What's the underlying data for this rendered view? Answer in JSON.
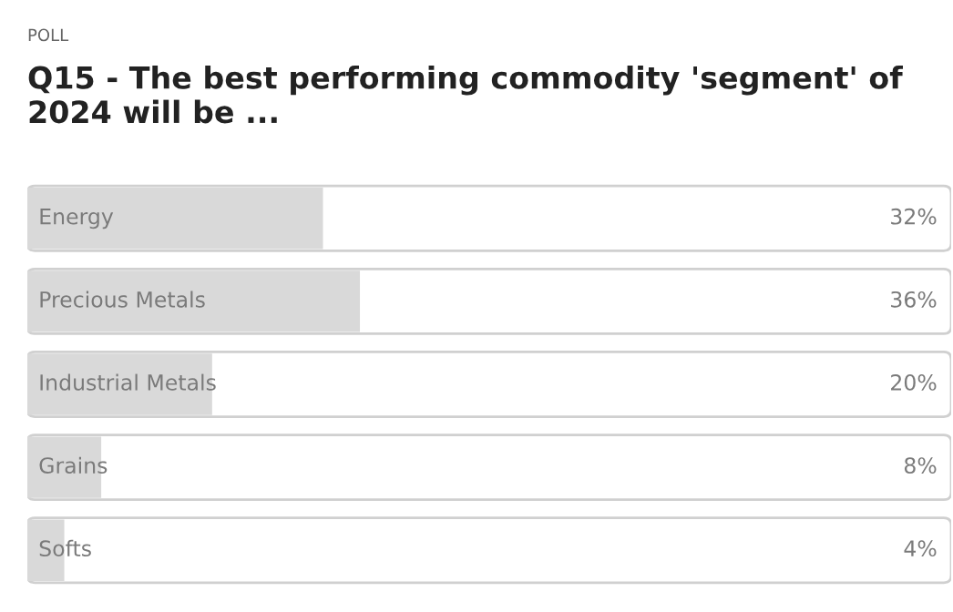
{
  "chart_data": {
    "type": "bar",
    "orientation": "horizontal",
    "subtitle": "POLL",
    "title": "Q15 - The best performing commodity 'segment' of 2024 will be ...",
    "categories": [
      "Energy",
      "Precious Metals",
      "Industrial Metals",
      "Grains",
      "Softs"
    ],
    "values": [
      32,
      36,
      20,
      8,
      4
    ],
    "value_labels": [
      "32%",
      "36%",
      "20%",
      "8%",
      "4%"
    ],
    "color": "#d9d9d9",
    "xlim": [
      0,
      100
    ]
  }
}
